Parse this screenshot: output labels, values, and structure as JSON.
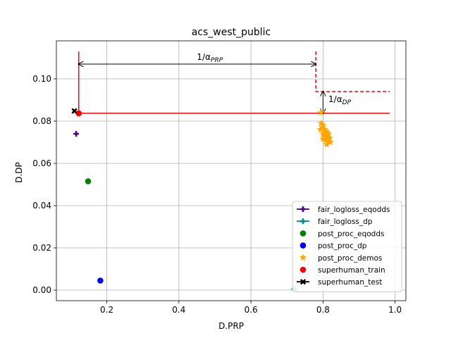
{
  "chart_data": {
    "type": "scatter",
    "title": "acs_west_public",
    "xlabel": "D.PRP",
    "ylabel": "D.DP",
    "xlim": [
      0.06,
      1.03
    ],
    "ylim": [
      -0.005,
      0.118
    ],
    "xticks": [
      0.2,
      0.4,
      0.6,
      0.8,
      1.0
    ],
    "xtick_labels": [
      "0.2",
      "0.4",
      "0.6",
      "0.8",
      "1.0"
    ],
    "yticks": [
      0.0,
      0.02,
      0.04,
      0.06,
      0.08,
      0.1
    ],
    "ytick_labels": [
      "0.00",
      "0.02",
      "0.04",
      "0.06",
      "0.08",
      "0.10"
    ],
    "grid": true,
    "legend_position": "lower-right",
    "series": [
      {
        "name": "fair_logloss_eqodds",
        "marker": "plus",
        "color": "#4b0082",
        "points": [
          [
            0.115,
            0.074
          ]
        ]
      },
      {
        "name": "fair_logloss_dp",
        "marker": "plus",
        "color": "#008b8b",
        "points": [
          [
            0.72,
            0.0005
          ]
        ]
      },
      {
        "name": "post_proc_eqodds",
        "marker": "circle",
        "color": "#008000",
        "points": [
          [
            0.148,
            0.0515
          ]
        ]
      },
      {
        "name": "post_proc_dp",
        "marker": "circle",
        "color": "#0000ff",
        "points": [
          [
            0.182,
            0.0045
          ]
        ]
      },
      {
        "name": "post_proc_demos",
        "marker": "star",
        "color": "#ffa500",
        "points": [
          [
            0.795,
            0.084
          ],
          [
            0.795,
            0.079
          ],
          [
            0.8,
            0.078
          ],
          [
            0.793,
            0.076
          ],
          [
            0.805,
            0.076
          ],
          [
            0.81,
            0.075
          ],
          [
            0.8,
            0.074
          ],
          [
            0.815,
            0.074
          ],
          [
            0.805,
            0.073
          ],
          [
            0.812,
            0.072
          ],
          [
            0.8,
            0.0715
          ],
          [
            0.818,
            0.072
          ],
          [
            0.808,
            0.071
          ],
          [
            0.815,
            0.0705
          ],
          [
            0.81,
            0.069
          ],
          [
            0.82,
            0.07
          ],
          [
            0.803,
            0.0725
          ],
          [
            0.798,
            0.077
          ],
          [
            0.812,
            0.0735
          ],
          [
            0.806,
            0.0745
          ]
        ]
      },
      {
        "name": "superhuman_train",
        "marker": "circle",
        "color": "#ff0000",
        "points": [
          [
            0.122,
            0.0837
          ]
        ]
      },
      {
        "name": "superhuman_test",
        "marker": "x",
        "color": "#000000",
        "points": [
          [
            0.11,
            0.0848
          ]
        ]
      }
    ],
    "lines": [
      {
        "style": "solid",
        "color": "#ff0000",
        "points": [
          [
            0.122,
            0.113
          ],
          [
            0.122,
            0.0837
          ],
          [
            0.985,
            0.0837
          ]
        ]
      },
      {
        "style": "dashed",
        "color": "#ff0000",
        "points": [
          [
            0.78,
            0.113
          ],
          [
            0.78,
            0.094
          ],
          [
            0.985,
            0.094
          ]
        ]
      }
    ],
    "annotations": [
      {
        "text_base": "1/α",
        "text_sub": "PRP",
        "arrow_from": [
          0.122,
          0.107
        ],
        "arrow_to": [
          0.78,
          0.107
        ],
        "label_at": [
          0.45,
          0.109
        ]
      },
      {
        "text_base": "1/α",
        "text_sub": "DP",
        "arrow_from": [
          0.8,
          0.0837
        ],
        "arrow_to": [
          0.8,
          0.094
        ],
        "label_at": [
          0.815,
          0.089
        ]
      }
    ]
  }
}
